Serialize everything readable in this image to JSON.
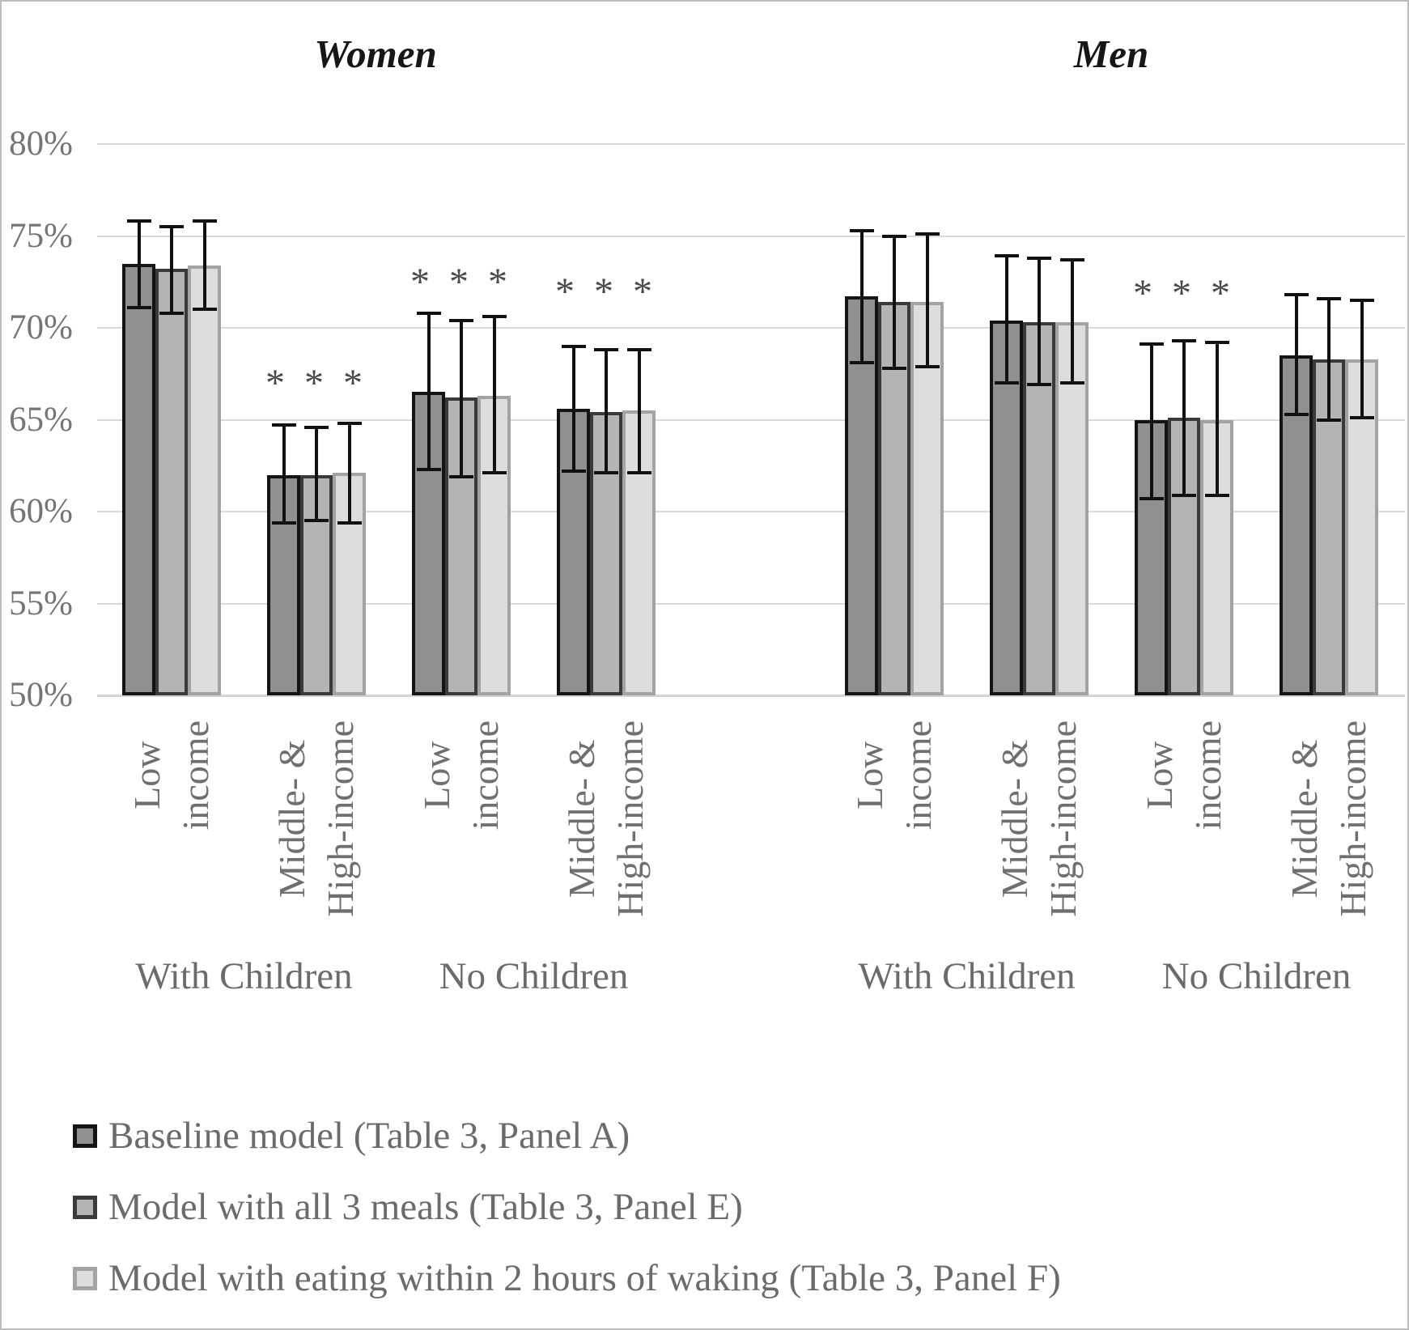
{
  "figure": {
    "background": "#ffffff",
    "frame_color": "#bdbdbd"
  },
  "chart_data": {
    "type": "bar",
    "title": "",
    "xlabel": "",
    "ylabel": "",
    "y_axis": {
      "min": 50,
      "max": 80,
      "unit": "%",
      "grid": true,
      "ticks": [
        {
          "label": "80%",
          "value": 80
        },
        {
          "label": "75%",
          "value": 75
        },
        {
          "label": "70%",
          "value": 70
        },
        {
          "label": "65%",
          "value": 65
        },
        {
          "label": "60%",
          "value": 60
        },
        {
          "label": "55%",
          "value": 55
        },
        {
          "label": "50%",
          "value": 50
        }
      ]
    },
    "series_meta": [
      {
        "name": "Baseline model (Table 3, Panel A)",
        "fill": "#909090",
        "stroke": "#141414"
      },
      {
        "name": "Model with all 3 meals (Table 3, Panel E)",
        "fill": "#b4b4b4",
        "stroke": "#3a3a3a"
      },
      {
        "name": "Model with eating within 2 hours of waking (Table 3, Panel F)",
        "fill": "#dddddd",
        "stroke": "#a3a3a3"
      }
    ],
    "panels": [
      {
        "title": "Women",
        "groups": [
          {
            "category": "Low income",
            "category_lines": [
              "Low",
              "income"
            ],
            "parent": "With Children",
            "significance": "",
            "sig_pct": null,
            "values": [
              73.5,
              73.2,
              73.4
            ],
            "ci_low": [
              71.1,
              70.8,
              71.0
            ],
            "ci_high": [
              75.8,
              75.5,
              75.8
            ]
          },
          {
            "category": "Middle- & High-income",
            "category_lines": [
              "Middle- &",
              "High-income"
            ],
            "parent": "With Children",
            "significance": "* * *",
            "sig_pct": 67.4,
            "values": [
              62.0,
              62.0,
              62.1
            ],
            "ci_low": [
              59.4,
              59.5,
              59.4
            ],
            "ci_high": [
              64.7,
              64.6,
              64.8
            ]
          },
          {
            "category": "Low income",
            "category_lines": [
              "Low",
              "income"
            ],
            "parent": "No Children",
            "significance": "* * *",
            "sig_pct": 72.9,
            "values": [
              66.5,
              66.2,
              66.3
            ],
            "ci_low": [
              62.3,
              61.9,
              62.1
            ],
            "ci_high": [
              70.8,
              70.4,
              70.6
            ]
          },
          {
            "category": "Middle- & High-income",
            "category_lines": [
              "Middle- &",
              "High-income"
            ],
            "parent": "No Children",
            "significance": "* * *",
            "sig_pct": 72.4,
            "values": [
              65.6,
              65.4,
              65.5
            ],
            "ci_low": [
              62.2,
              62.1,
              62.1
            ],
            "ci_high": [
              69.0,
              68.8,
              68.8
            ]
          }
        ]
      },
      {
        "title": "Men",
        "groups": [
          {
            "category": "Low income",
            "category_lines": [
              "Low",
              "income"
            ],
            "parent": "With Children",
            "significance": "",
            "sig_pct": null,
            "values": [
              71.7,
              71.4,
              71.4
            ],
            "ci_low": [
              68.1,
              67.8,
              67.9
            ],
            "ci_high": [
              75.3,
              75.0,
              75.1
            ]
          },
          {
            "category": "Middle- & High-income",
            "category_lines": [
              "Middle- &",
              "High-income"
            ],
            "parent": "With Children",
            "significance": "",
            "sig_pct": null,
            "values": [
              70.4,
              70.3,
              70.3
            ],
            "ci_low": [
              67.0,
              66.9,
              67.0
            ],
            "ci_high": [
              73.9,
              73.8,
              73.7
            ]
          },
          {
            "category": "Low income",
            "category_lines": [
              "Low",
              "income"
            ],
            "parent": "No Children",
            "significance": "* * *",
            "sig_pct": 72.3,
            "values": [
              65.0,
              65.1,
              65.0
            ],
            "ci_low": [
              60.7,
              60.9,
              60.9
            ],
            "ci_high": [
              69.1,
              69.3,
              69.2
            ]
          },
          {
            "category": "Middle- & High-income",
            "category_lines": [
              "Middle- &",
              "High-income"
            ],
            "parent": "No Children",
            "significance": "",
            "sig_pct": null,
            "values": [
              68.5,
              68.3,
              68.3
            ],
            "ci_low": [
              65.3,
              65.0,
              65.1
            ],
            "ci_high": [
              71.8,
              71.6,
              71.5
            ]
          }
        ]
      }
    ],
    "group_labels": [
      {
        "text": "With Children",
        "panel": 0,
        "groups": [
          0,
          1
        ]
      },
      {
        "text": "No Children",
        "panel": 0,
        "groups": [
          2,
          3
        ]
      },
      {
        "text": "With Children",
        "panel": 1,
        "groups": [
          0,
          1
        ]
      },
      {
        "text": "No Children",
        "panel": 1,
        "groups": [
          2,
          3
        ]
      }
    ],
    "error_bars": true,
    "legend_position": "bottom-left"
  }
}
